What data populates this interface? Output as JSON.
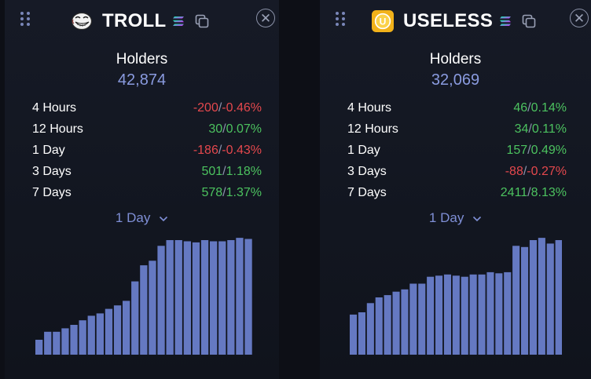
{
  "colors": {
    "bar": "#6579c2",
    "negative": "#e5484d",
    "positive": "#4cc25f",
    "holders_count": "#8a9be0",
    "dropdown": "#7f8fd6"
  },
  "panels": [
    {
      "token_name": "TROLL",
      "logo_icon": "troll-face-icon",
      "holders_label": "Holders",
      "holders_count": "42,874",
      "stats": [
        {
          "label": "4 Hours",
          "change": "-200",
          "percent": "-0.46%",
          "trend": "neg"
        },
        {
          "label": "12 Hours",
          "change": "30",
          "percent": "0.07%",
          "trend": "pos"
        },
        {
          "label": "1 Day",
          "change": "-186",
          "percent": "-0.43%",
          "trend": "neg"
        },
        {
          "label": "3 Days",
          "change": "501",
          "percent": "1.18%",
          "trend": "pos"
        },
        {
          "label": "7 Days",
          "change": "578",
          "percent": "1.37%",
          "trend": "pos"
        }
      ],
      "range_selected": "1 Day",
      "chart_data": {
        "type": "bar",
        "values": [
          0.13,
          0.2,
          0.2,
          0.23,
          0.26,
          0.3,
          0.34,
          0.36,
          0.4,
          0.43,
          0.47,
          0.64,
          0.78,
          0.82,
          0.95,
          1.0,
          1.0,
          0.99,
          0.98,
          1.0,
          0.99,
          0.99,
          1.0,
          1.02,
          1.01
        ]
      }
    },
    {
      "token_name": "USELESS",
      "logo_icon": "useless-coin-icon",
      "holders_label": "Holders",
      "holders_count": "32,069",
      "stats": [
        {
          "label": "4 Hours",
          "change": "46",
          "percent": "0.14%",
          "trend": "pos"
        },
        {
          "label": "12 Hours",
          "change": "34",
          "percent": "0.11%",
          "trend": "pos"
        },
        {
          "label": "1 Day",
          "change": "157",
          "percent": "0.49%",
          "trend": "pos"
        },
        {
          "label": "3 Days",
          "change": "-88",
          "percent": "-0.27%",
          "trend": "neg"
        },
        {
          "label": "7 Days",
          "change": "2411",
          "percent": "8.13%",
          "trend": "pos"
        }
      ],
      "range_selected": "1 Day",
      "chart_data": {
        "type": "bar",
        "values": [
          0.35,
          0.37,
          0.45,
          0.5,
          0.52,
          0.55,
          0.57,
          0.62,
          0.62,
          0.68,
          0.69,
          0.7,
          0.69,
          0.68,
          0.7,
          0.7,
          0.72,
          0.71,
          0.72,
          0.95,
          0.94,
          1.0,
          1.02,
          0.97,
          1.0
        ]
      }
    }
  ]
}
